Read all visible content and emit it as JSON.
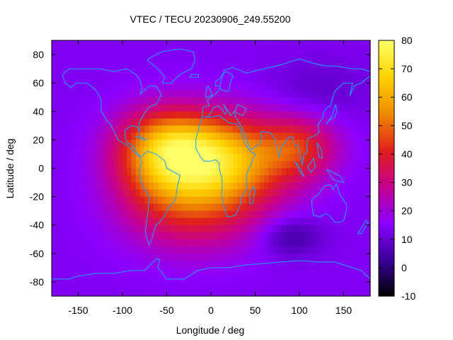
{
  "chart_data": {
    "type": "heatmap",
    "title": "VTEC / TECU 20230906_249.55200",
    "xlabel": "Longitude / deg",
    "ylabel": "Latitude / deg",
    "xlim": [
      -180,
      180
    ],
    "ylim": [
      -90,
      90
    ],
    "x_ticks": [
      -150,
      -100,
      -50,
      0,
      50,
      100,
      150
    ],
    "y_ticks": [
      80,
      60,
      40,
      20,
      0,
      -20,
      -40,
      -60,
      -80
    ],
    "colorbar": {
      "min": -10,
      "max": 80,
      "ticks": [
        80,
        70,
        60,
        50,
        40,
        30,
        20,
        10,
        0,
        -10
      ],
      "palette": [
        "#000000",
        "#3a0099",
        "#8b00ff",
        "#c7008f",
        "#e0201b",
        "#f08a00",
        "#ffd200",
        "#ffff66"
      ]
    },
    "field_model": {
      "background_tec": 14,
      "peaks": [
        {
          "lon": 5,
          "lat": 5,
          "amplitude": 52,
          "sigma_lon": 55,
          "sigma_lat": 22
        },
        {
          "lon": -60,
          "lat": 8,
          "amplitude": 25,
          "sigma_lon": 35,
          "sigma_lat": 22
        },
        {
          "lon": 100,
          "lat": 15,
          "amplitude": 22,
          "sigma_lon": 30,
          "sigma_lat": 15
        },
        {
          "lon": -40,
          "lat": 22,
          "amplitude": 12,
          "sigma_lon": 40,
          "sigma_lat": 14
        },
        {
          "lon": -20,
          "lat": -30,
          "amplitude": 20,
          "sigma_lon": 55,
          "sigma_lat": 22
        }
      ],
      "troughs": [
        {
          "lon": 90,
          "lat": -48,
          "amplitude": -11,
          "sigma_lon": 25,
          "sigma_lat": 10
        },
        {
          "lon": 120,
          "lat": 55,
          "amplitude": -5,
          "sigma_lon": 40,
          "sigma_lat": 15
        }
      ]
    },
    "coastline_color": "#1ea0ff",
    "coastlines": [
      [
        [
          -168,
          66
        ],
        [
          -160,
          70
        ],
        [
          -140,
          70
        ],
        [
          -125,
          70
        ],
        [
          -110,
          68
        ],
        [
          -95,
          70
        ],
        [
          -85,
          66
        ],
        [
          -80,
          62
        ],
        [
          -78,
          56
        ],
        [
          -80,
          52
        ],
        [
          -70,
          58
        ],
        [
          -62,
          58
        ],
        [
          -56,
          52
        ],
        [
          -62,
          45
        ],
        [
          -70,
          43
        ],
        [
          -76,
          38
        ],
        [
          -81,
          32
        ],
        [
          -81,
          25
        ],
        [
          -83,
          29
        ],
        [
          -90,
          30
        ],
        [
          -97,
          27
        ],
        [
          -97,
          22
        ],
        [
          -95,
          18
        ],
        [
          -88,
          16
        ],
        [
          -84,
          11
        ],
        [
          -80,
          8
        ],
        [
          -85,
          10
        ],
        [
          -92,
          15
        ],
        [
          -105,
          20
        ],
        [
          -112,
          29
        ],
        [
          -115,
          32
        ],
        [
          -117,
          33
        ],
        [
          -124,
          40
        ],
        [
          -124,
          48
        ],
        [
          -130,
          55
        ],
        [
          -140,
          60
        ],
        [
          -152,
          60
        ],
        [
          -158,
          57
        ],
        [
          -165,
          60
        ],
        [
          -168,
          66
        ]
      ],
      [
        [
          -80,
          8
        ],
        [
          -77,
          9
        ],
        [
          -72,
          12
        ],
        [
          -62,
          10
        ],
        [
          -52,
          5
        ],
        [
          -50,
          0
        ],
        [
          -44,
          -2
        ],
        [
          -35,
          -5
        ],
        [
          -38,
          -13
        ],
        [
          -40,
          -22
        ],
        [
          -48,
          -28
        ],
        [
          -53,
          -34
        ],
        [
          -58,
          -38
        ],
        [
          -62,
          -40
        ],
        [
          -65,
          -45
        ],
        [
          -67,
          -50
        ],
        [
          -70,
          -54
        ],
        [
          -72,
          -50
        ],
        [
          -74,
          -45
        ],
        [
          -73,
          -38
        ],
        [
          -71,
          -30
        ],
        [
          -70,
          -20
        ],
        [
          -76,
          -14
        ],
        [
          -80,
          -6
        ],
        [
          -80,
          0
        ],
        [
          -78,
          4
        ],
        [
          -80,
          8
        ]
      ],
      [
        [
          -55,
          60
        ],
        [
          -45,
          60
        ],
        [
          -35,
          66
        ],
        [
          -22,
          70
        ],
        [
          -18,
          76
        ],
        [
          -20,
          82
        ],
        [
          -35,
          84
        ],
        [
          -55,
          82
        ],
        [
          -68,
          78
        ],
        [
          -72,
          76
        ],
        [
          -60,
          70
        ],
        [
          -52,
          64
        ],
        [
          -55,
          60
        ]
      ],
      [
        [
          -10,
          36
        ],
        [
          -17,
          21
        ],
        [
          -17,
          14
        ],
        [
          -12,
          8
        ],
        [
          -8,
          5
        ],
        [
          0,
          5
        ],
        [
          5,
          6
        ],
        [
          9,
          4
        ],
        [
          10,
          -2
        ],
        [
          12,
          -6
        ],
        [
          13,
          -12
        ],
        [
          12,
          -18
        ],
        [
          15,
          -28
        ],
        [
          18,
          -34
        ],
        [
          22,
          -34
        ],
        [
          28,
          -33
        ],
        [
          33,
          -26
        ],
        [
          35,
          -20
        ],
        [
          40,
          -15
        ],
        [
          40,
          -5
        ],
        [
          43,
          0
        ],
        [
          50,
          10
        ],
        [
          44,
          12
        ],
        [
          38,
          18
        ],
        [
          33,
          28
        ],
        [
          30,
          31
        ],
        [
          20,
          32
        ],
        [
          10,
          37
        ],
        [
          0,
          36
        ],
        [
          -10,
          36
        ]
      ],
      [
        [
          -10,
          36
        ],
        [
          -9,
          43
        ],
        [
          -2,
          44
        ],
        [
          -4,
          48
        ],
        [
          2,
          51
        ],
        [
          8,
          54
        ],
        [
          10,
          57
        ],
        [
          12,
          55
        ],
        [
          20,
          54
        ],
        [
          22,
          60
        ],
        [
          25,
          65
        ],
        [
          18,
          68
        ],
        [
          14,
          67
        ],
        [
          10,
          63
        ],
        [
          5,
          61
        ],
        [
          5,
          58
        ],
        [
          10,
          58
        ],
        [
          15,
          69
        ],
        [
          25,
          71
        ],
        [
          40,
          67
        ],
        [
          60,
          70
        ],
        [
          80,
          73
        ],
        [
          100,
          77
        ],
        [
          115,
          74
        ],
        [
          130,
          72
        ],
        [
          140,
          72
        ],
        [
          160,
          70
        ],
        [
          170,
          70
        ],
        [
          180,
          68
        ]
      ],
      [
        [
          180,
          65
        ],
        [
          170,
          60
        ],
        [
          162,
          58
        ],
        [
          157,
          51
        ],
        [
          160,
          60
        ],
        [
          150,
          60
        ],
        [
          140,
          54
        ],
        [
          135,
          44
        ],
        [
          130,
          42
        ],
        [
          127,
          39
        ],
        [
          126,
          35
        ],
        [
          121,
          31
        ],
        [
          122,
          25
        ],
        [
          117,
          23
        ],
        [
          110,
          21
        ],
        [
          108,
          16
        ],
        [
          109,
          12
        ],
        [
          105,
          9
        ],
        [
          103,
          2
        ],
        [
          100,
          13
        ],
        [
          98,
          16
        ],
        [
          95,
          16
        ],
        [
          92,
          22
        ],
        [
          88,
          22
        ],
        [
          80,
          15
        ],
        [
          77,
          8
        ],
        [
          72,
          21
        ],
        [
          67,
          25
        ],
        [
          57,
          26
        ],
        [
          56,
          24
        ],
        [
          58,
          22
        ],
        [
          55,
          17
        ],
        [
          45,
          13
        ],
        [
          43,
          16
        ],
        [
          36,
          27
        ],
        [
          34,
          30
        ],
        [
          28,
          36
        ],
        [
          26,
          40
        ],
        [
          36,
          37
        ],
        [
          40,
          42
        ],
        [
          30,
          45
        ],
        [
          28,
          41
        ],
        [
          22,
          37
        ],
        [
          20,
          40
        ],
        [
          14,
          45
        ],
        [
          18,
          40
        ],
        [
          16,
          38
        ],
        [
          12,
          42
        ],
        [
          8,
          44
        ],
        [
          3,
          43
        ],
        [
          -1,
          38
        ],
        [
          -5,
          36
        ]
      ],
      [
        [
          114,
          -22
        ],
        [
          114,
          -26
        ],
        [
          116,
          -33
        ],
        [
          123,
          -34
        ],
        [
          130,
          -32
        ],
        [
          135,
          -34
        ],
        [
          140,
          -38
        ],
        [
          145,
          -38
        ],
        [
          150,
          -37
        ],
        [
          153,
          -30
        ],
        [
          153,
          -25
        ],
        [
          146,
          -19
        ],
        [
          142,
          -11
        ],
        [
          138,
          -15
        ],
        [
          136,
          -12
        ],
        [
          130,
          -12
        ],
        [
          125,
          -15
        ],
        [
          122,
          -18
        ],
        [
          114,
          -22
        ]
      ],
      [
        [
          -180,
          -78
        ],
        [
          -160,
          -78
        ],
        [
          -150,
          -76
        ],
        [
          -130,
          -74
        ],
        [
          -110,
          -74
        ],
        [
          -90,
          -72
        ],
        [
          -75,
          -72
        ],
        [
          -62,
          -64
        ],
        [
          -58,
          -64
        ],
        [
          -60,
          -70
        ],
        [
          -50,
          -78
        ],
        [
          -30,
          -78
        ],
        [
          -15,
          -72
        ],
        [
          0,
          -70
        ],
        [
          20,
          -70
        ],
        [
          40,
          -68
        ],
        [
          60,
          -67
        ],
        [
          80,
          -66
        ],
        [
          100,
          -65
        ],
        [
          120,
          -66
        ],
        [
          140,
          -66
        ],
        [
          160,
          -70
        ],
        [
          170,
          -72
        ],
        [
          180,
          -78
        ]
      ],
      [
        [
          95,
          5
        ],
        [
          100,
          -2
        ],
        [
          105,
          -6
        ],
        [
          101,
          0
        ],
        [
          95,
          5
        ]
      ],
      [
        [
          109,
          1
        ],
        [
          113,
          -3
        ],
        [
          118,
          1
        ],
        [
          116,
          7
        ],
        [
          112,
          3
        ],
        [
          109,
          1
        ]
      ],
      [
        [
          131,
          -1
        ],
        [
          138,
          -3
        ],
        [
          147,
          -6
        ],
        [
          150,
          -10
        ],
        [
          143,
          -9
        ],
        [
          138,
          -8
        ],
        [
          131,
          -1
        ]
      ],
      [
        [
          44,
          -25
        ],
        [
          47,
          -25
        ],
        [
          50,
          -15
        ],
        [
          48,
          -13
        ],
        [
          44,
          -17
        ],
        [
          44,
          -25
        ]
      ],
      [
        [
          -6,
          50
        ],
        [
          1,
          51
        ],
        [
          0,
          54
        ],
        [
          -3,
          58
        ],
        [
          -5,
          56
        ],
        [
          -6,
          50
        ]
      ],
      [
        [
          130,
          31
        ],
        [
          134,
          34
        ],
        [
          140,
          36
        ],
        [
          142,
          40
        ],
        [
          141,
          45
        ],
        [
          137,
          37
        ],
        [
          130,
          31
        ]
      ],
      [
        [
          166,
          -46
        ],
        [
          172,
          -40
        ],
        [
          175,
          -37
        ],
        [
          178,
          -38
        ],
        [
          174,
          -42
        ],
        [
          170,
          -46
        ],
        [
          166,
          -46
        ]
      ],
      [
        [
          -24,
          64
        ],
        [
          -14,
          64
        ],
        [
          -14,
          66
        ],
        [
          -22,
          66
        ],
        [
          -24,
          64
        ]
      ],
      [
        [
          -85,
          22
        ],
        [
          -75,
          20
        ],
        [
          -74,
          20
        ],
        [
          -80,
          23
        ],
        [
          -85,
          22
        ]
      ],
      [
        [
          120,
          18
        ],
        [
          125,
          13
        ],
        [
          126,
          7
        ],
        [
          122,
          8
        ],
        [
          120,
          18
        ]
      ]
    ]
  }
}
